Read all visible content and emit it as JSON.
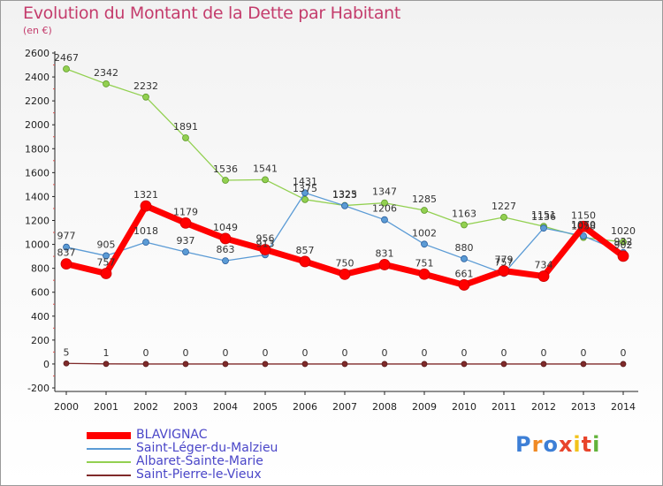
{
  "header": {
    "title": "Evolution du Montant de la Dette par Habitant",
    "unit": "(en €)"
  },
  "logo": {
    "text": "Proxiti"
  },
  "chart_data": {
    "type": "line",
    "title": "Evolution du Montant de la Dette par Habitant",
    "ylabel": "(en €)",
    "xlabel": "",
    "x": [
      "2000",
      "2001",
      "2002",
      "2003",
      "2004",
      "2005",
      "2006",
      "2007",
      "2008",
      "2009",
      "2010",
      "2011",
      "2012",
      "2013",
      "2014"
    ],
    "ylim": [
      -200,
      2600
    ],
    "yticks": [
      -200,
      0,
      200,
      400,
      600,
      800,
      1000,
      1200,
      1400,
      1600,
      1800,
      2000,
      2200,
      2400,
      2600
    ],
    "grid": false,
    "legend_position": "bottom-left",
    "series": [
      {
        "name": "BLAVIGNAC",
        "color": "#ff0000",
        "values": [
          837,
          757,
          1321,
          1179,
          1049,
          956,
          857,
          750,
          831,
          751,
          661,
          779,
          734,
          1150,
          902
        ]
      },
      {
        "name": "Saint-Léger-du-Malzieu",
        "color": "#5b9bd5",
        "values": [
          977,
          905,
          1018,
          937,
          863,
          913,
          1431,
          1323,
          1206,
          1002,
          880,
          757,
          1136,
          1070,
          932
        ]
      },
      {
        "name": "Albaret-Sainte-Marie",
        "color": "#92d050",
        "values": [
          2467,
          2342,
          2232,
          1891,
          1536,
          1541,
          1375,
          1325,
          1347,
          1285,
          1163,
          1227,
          1151,
          1058,
          1020
        ]
      },
      {
        "name": "Saint-Pierre-le-Vieux",
        "color": "#7f2a2a",
        "values": [
          5,
          1,
          0,
          0,
          0,
          0,
          0,
          0,
          0,
          0,
          0,
          0,
          0,
          0,
          0
        ]
      }
    ]
  }
}
